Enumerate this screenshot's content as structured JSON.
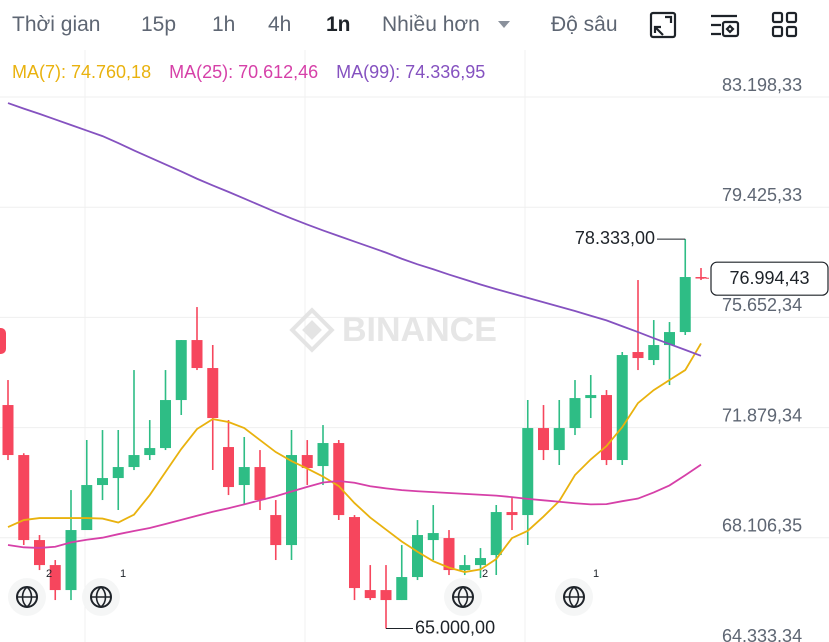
{
  "toolbar": [
    "Thời gian",
    "15p",
    "1h",
    "4h",
    "1n",
    "Nhiều hơn",
    "Độ sâu"
  ],
  "chart_data": {
    "type": "candlestick",
    "watermark": "BINANCE",
    "up_color": "#2ebd85",
    "down_color": "#f6465d",
    "ylim": [
      64333.34,
      84808
    ],
    "yticks": [
      {
        "value": 83198.33,
        "label": "83.198,33"
      },
      {
        "value": 79425.33,
        "label": "79.425,33"
      },
      {
        "value": 75652.34,
        "label": "75.652,34"
      },
      {
        "value": 71879.34,
        "label": "71.879,34"
      },
      {
        "value": 68106.35,
        "label": "68.106,35"
      },
      {
        "value": 64333.34,
        "label": "64.333,34"
      }
    ],
    "grid": true,
    "open": [
      72652,
      70940,
      68029,
      67173,
      66317,
      68372,
      69913,
      70152,
      70529,
      70940,
      71179,
      72823,
      74877,
      73919,
      71214,
      69913,
      70529,
      68885,
      67858,
      70940,
      70563,
      71351,
      68817,
      66317,
      66317,
      65975,
      66763,
      68029,
      68098,
      67002,
      67173,
      67516,
      68988,
      68885,
      71864,
      71111,
      71864,
      72891,
      72994,
      70769,
      74467,
      74193,
      74706,
      75151,
      77035
    ],
    "high": [
      73508,
      71000,
      68201,
      67345,
      69741,
      71453,
      71796,
      71796,
      73850,
      72138,
      73850,
      74877,
      76007,
      74706,
      72138,
      71556,
      71111,
      69399,
      71796,
      71453,
      71967,
      71453,
      68885,
      67173,
      67173,
      67858,
      68714,
      69228,
      68372,
      67516,
      67755,
      69228,
      69467,
      72823,
      72652,
      72823,
      73508,
      73679,
      73165,
      74467,
      76932,
      75562,
      75494,
      78333,
      77343
    ],
    "low": [
      70769,
      67858,
      67002,
      65975,
      65975,
      68372,
      69399,
      69057,
      70426,
      70769,
      71111,
      72309,
      73850,
      70426,
      69570,
      69228,
      69057,
      67345,
      67345,
      69913,
      69913,
      68714,
      65975,
      65975,
      65000,
      65975,
      66660,
      67345,
      66831,
      66831,
      66728,
      66831,
      68372,
      67858,
      70769,
      70597,
      71625,
      72207,
      70597,
      70597,
      73850,
      74021,
      73337,
      75049,
      76932
    ],
    "close": [
      70940,
      68029,
      67173,
      66317,
      68372,
      69913,
      70152,
      70529,
      70940,
      71179,
      72823,
      74877,
      73919,
      72207,
      69844,
      70529,
      69399,
      67858,
      70940,
      70495,
      71351,
      68885,
      66386,
      66043,
      65975,
      66763,
      68201,
      68269,
      67002,
      67173,
      67413,
      68988,
      68885,
      71864,
      71111,
      71864,
      72891,
      72994,
      70769,
      74364,
      74261,
      74706,
      75151,
      77035,
      76994.43
    ],
    "series": [
      {
        "name": "MA(7): 74.760,18",
        "color": "#e9b20e",
        "values": [
          68475,
          68714,
          68782,
          68782,
          68782,
          68782,
          68765,
          68630,
          68900,
          69570,
          70358,
          71145,
          71830,
          72170,
          72070,
          71864,
          71453,
          71043,
          70734,
          70478,
          70204,
          69878,
          69296,
          68800,
          68389,
          67981,
          67630,
          67305,
          67085,
          66934,
          67023,
          67379,
          68098,
          68345,
          68834,
          69365,
          70255,
          70790,
          71248,
          71898,
          72720,
          73165,
          73508,
          73850,
          74760.18
        ]
      },
      {
        "name": "MA(25): 70.612,46",
        "color": "#d640a8",
        "values": [
          67859,
          67780,
          67760,
          67800,
          67950,
          68040,
          68110,
          68230,
          68340,
          68441,
          68580,
          68720,
          68860,
          69000,
          69120,
          69250,
          69390,
          69530,
          69690,
          69850,
          70000,
          70050,
          69990,
          69870,
          69800,
          69740,
          69700,
          69670,
          69640,
          69610,
          69580,
          69550,
          69500,
          69440,
          69390,
          69340,
          69290,
          69250,
          69260,
          69360,
          69450,
          69660,
          69900,
          70250,
          70612.46
        ]
      },
      {
        "name": "MA(99): 74.336,95",
        "color": "#8552c0",
        "values": [
          82992,
          82800,
          82620,
          82430,
          82240,
          82050,
          81860,
          81620,
          81370,
          81130,
          80890,
          80650,
          80400,
          80170,
          79950,
          79720,
          79490,
          79260,
          79040,
          78830,
          78630,
          78440,
          78250,
          78060,
          77870,
          77660,
          77470,
          77300,
          77120,
          76950,
          76780,
          76620,
          76470,
          76320,
          76170,
          76020,
          75870,
          75710,
          75550,
          75350,
          75150,
          74940,
          74740,
          74540,
          74336.95
        ]
      }
    ],
    "high_mark": {
      "value": 78333,
      "label": "78.333,00"
    },
    "low_mark": {
      "value": 65000,
      "label": "65.000,00"
    },
    "price_line": {
      "value": 76994.43,
      "label": "76.994,43"
    },
    "badges": [
      "2",
      "1",
      "2",
      "1"
    ]
  }
}
